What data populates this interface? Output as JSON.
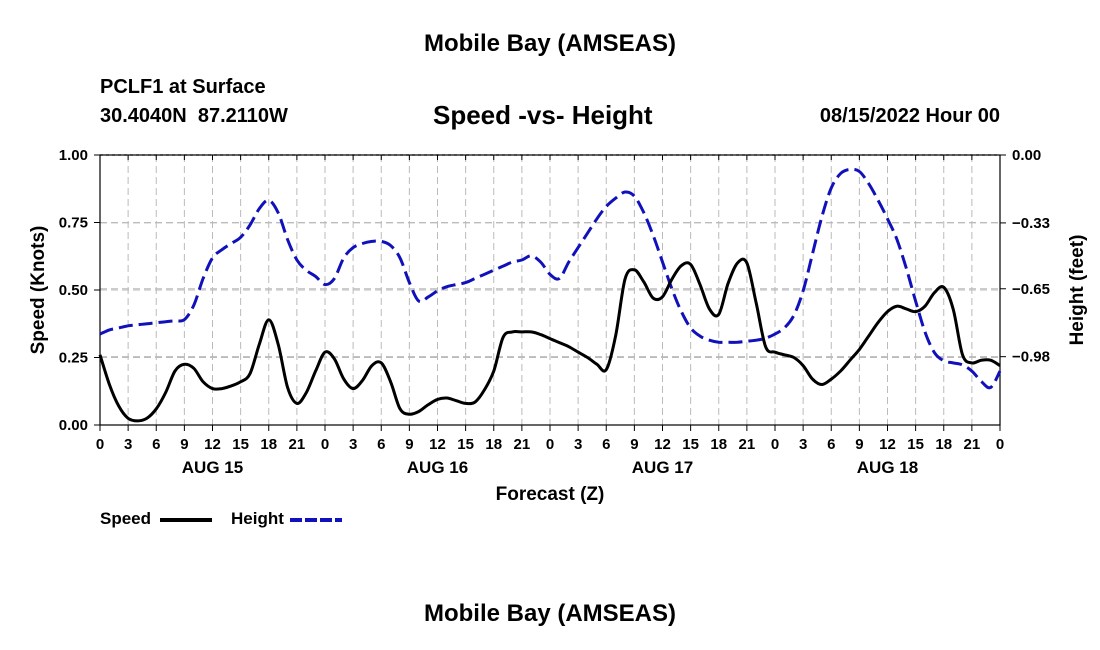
{
  "header": {
    "title": "Mobile Bay (AMSEAS)",
    "station": "PCLF1 at Surface",
    "coords": "30.4040N  87.2110W",
    "chart_title": "Speed -vs- Height",
    "datetime": "08/15/2022 Hour 00"
  },
  "footer": {
    "title": "Mobile Bay (AMSEAS)"
  },
  "legend": {
    "speed_label": "Speed",
    "height_label": "Height",
    "speed_color": "#000000",
    "height_color": "#1111bb"
  },
  "chart_data": {
    "type": "line",
    "title": "Speed -vs- Height",
    "xlabel": "Forecast (Z)",
    "ylabel": "Speed (Knots)",
    "y2label": "Height (feet)",
    "x_range": [
      0,
      96
    ],
    "x_tick_labels": [
      "0",
      "3",
      "6",
      "9",
      "12",
      "15",
      "18",
      "21",
      "0",
      "3",
      "6",
      "9",
      "12",
      "15",
      "18",
      "21",
      "0",
      "3",
      "6",
      "9",
      "12",
      "15",
      "18",
      "21",
      "0",
      "3",
      "6",
      "9",
      "12",
      "15",
      "18",
      "21",
      "0"
    ],
    "day_labels": [
      {
        "label": "AUG 15",
        "x": 12
      },
      {
        "label": "AUG 16",
        "x": 36
      },
      {
        "label": "AUG 17",
        "x": 60
      },
      {
        "label": "AUG 18",
        "x": 84
      }
    ],
    "y_range": [
      0,
      1
    ],
    "y_ticks": [
      0,
      0.25,
      0.5,
      0.75,
      1.0
    ],
    "y_tick_labels": [
      "0.00",
      "0.25",
      "0.50",
      "0.75",
      "1.00"
    ],
    "y2_range": [
      -1.312,
      0
    ],
    "y2_ticks": [
      0,
      -0.33,
      -0.65,
      -0.98
    ],
    "y2_tick_labels": [
      "0.00",
      "−0.33",
      "−0.65",
      "−0.98"
    ],
    "grid": true,
    "legend_position": "bottom-left",
    "series": [
      {
        "name": "Speed",
        "color": "#000000",
        "dashed": false,
        "axis": "left",
        "x": [
          0,
          1,
          2,
          3,
          4,
          5,
          6,
          7,
          8,
          9,
          10,
          11,
          12,
          13,
          14,
          15,
          16,
          17,
          18,
          19,
          20,
          21,
          22,
          23,
          24,
          25,
          26,
          27,
          28,
          29,
          30,
          31,
          32,
          33,
          34,
          35,
          36,
          37,
          38,
          39,
          40,
          41,
          42,
          43,
          44,
          45,
          46,
          47,
          48,
          49,
          50,
          51,
          52,
          53,
          54,
          55,
          56,
          57,
          58,
          59,
          60,
          61,
          62,
          63,
          64,
          65,
          66,
          67,
          68,
          69,
          70,
          71,
          72,
          73,
          74,
          75,
          76,
          77,
          78,
          79,
          80,
          81,
          82,
          83,
          84,
          85,
          86,
          87,
          88,
          89,
          90,
          91,
          92,
          93,
          94,
          95,
          96
        ],
        "values": [
          0.26,
          0.15,
          0.07,
          0.025,
          0.015,
          0.025,
          0.06,
          0.12,
          0.2,
          0.225,
          0.21,
          0.16,
          0.135,
          0.135,
          0.145,
          0.16,
          0.19,
          0.3,
          0.39,
          0.3,
          0.14,
          0.08,
          0.12,
          0.2,
          0.27,
          0.245,
          0.17,
          0.135,
          0.165,
          0.22,
          0.23,
          0.16,
          0.06,
          0.04,
          0.05,
          0.075,
          0.095,
          0.1,
          0.09,
          0.08,
          0.085,
          0.13,
          0.2,
          0.325,
          0.345,
          0.345,
          0.345,
          0.335,
          0.32,
          0.305,
          0.29,
          0.27,
          0.25,
          0.225,
          0.205,
          0.33,
          0.54,
          0.575,
          0.53,
          0.47,
          0.475,
          0.54,
          0.59,
          0.595,
          0.52,
          0.43,
          0.41,
          0.525,
          0.6,
          0.6,
          0.45,
          0.29,
          0.27,
          0.26,
          0.25,
          0.22,
          0.17,
          0.15,
          0.17,
          0.2,
          0.24,
          0.28,
          0.33,
          0.38,
          0.42,
          0.44,
          0.43,
          0.42,
          0.44,
          0.49,
          0.51,
          0.43,
          0.26,
          0.23,
          0.24,
          0.24,
          0.22
        ]
      },
      {
        "name": "Height",
        "color": "#1111bb",
        "dashed": true,
        "axis": "right",
        "x": [
          0,
          1,
          2,
          3,
          4,
          5,
          6,
          7,
          8,
          9,
          10,
          11,
          12,
          13,
          14,
          15,
          16,
          17,
          18,
          19,
          20,
          21,
          22,
          23,
          24,
          25,
          26,
          27,
          28,
          29,
          30,
          31,
          32,
          33,
          34,
          35,
          36,
          37,
          38,
          39,
          40,
          41,
          42,
          43,
          44,
          45,
          46,
          47,
          48,
          49,
          50,
          51,
          52,
          53,
          54,
          55,
          56,
          57,
          58,
          59,
          60,
          61,
          62,
          63,
          64,
          65,
          66,
          67,
          68,
          69,
          70,
          71,
          72,
          73,
          74,
          75,
          76,
          77,
          78,
          79,
          80,
          81,
          82,
          83,
          84,
          85,
          86,
          87,
          88,
          89,
          90,
          91,
          92,
          93,
          94,
          95,
          96
        ],
        "values": [
          -0.87,
          -0.85,
          -0.84,
          -0.83,
          -0.825,
          -0.82,
          -0.815,
          -0.81,
          -0.805,
          -0.8,
          -0.73,
          -0.6,
          -0.5,
          -0.46,
          -0.43,
          -0.4,
          -0.34,
          -0.26,
          -0.22,
          -0.28,
          -0.41,
          -0.51,
          -0.56,
          -0.59,
          -0.63,
          -0.6,
          -0.5,
          -0.45,
          -0.43,
          -0.42,
          -0.42,
          -0.44,
          -0.5,
          -0.62,
          -0.71,
          -0.69,
          -0.66,
          -0.64,
          -0.63,
          -0.62,
          -0.6,
          -0.58,
          -0.56,
          -0.54,
          -0.52,
          -0.51,
          -0.49,
          -0.52,
          -0.58,
          -0.6,
          -0.52,
          -0.45,
          -0.38,
          -0.31,
          -0.25,
          -0.21,
          -0.18,
          -0.2,
          -0.28,
          -0.39,
          -0.52,
          -0.65,
          -0.76,
          -0.84,
          -0.88,
          -0.9,
          -0.91,
          -0.91,
          -0.91,
          -0.905,
          -0.9,
          -0.89,
          -0.87,
          -0.84,
          -0.78,
          -0.66,
          -0.48,
          -0.3,
          -0.16,
          -0.09,
          -0.07,
          -0.08,
          -0.14,
          -0.22,
          -0.31,
          -0.41,
          -0.55,
          -0.71,
          -0.86,
          -0.96,
          -1.0,
          -1.01,
          -1.02,
          -1.05,
          -1.1,
          -1.13,
          -1.05
        ]
      }
    ]
  }
}
